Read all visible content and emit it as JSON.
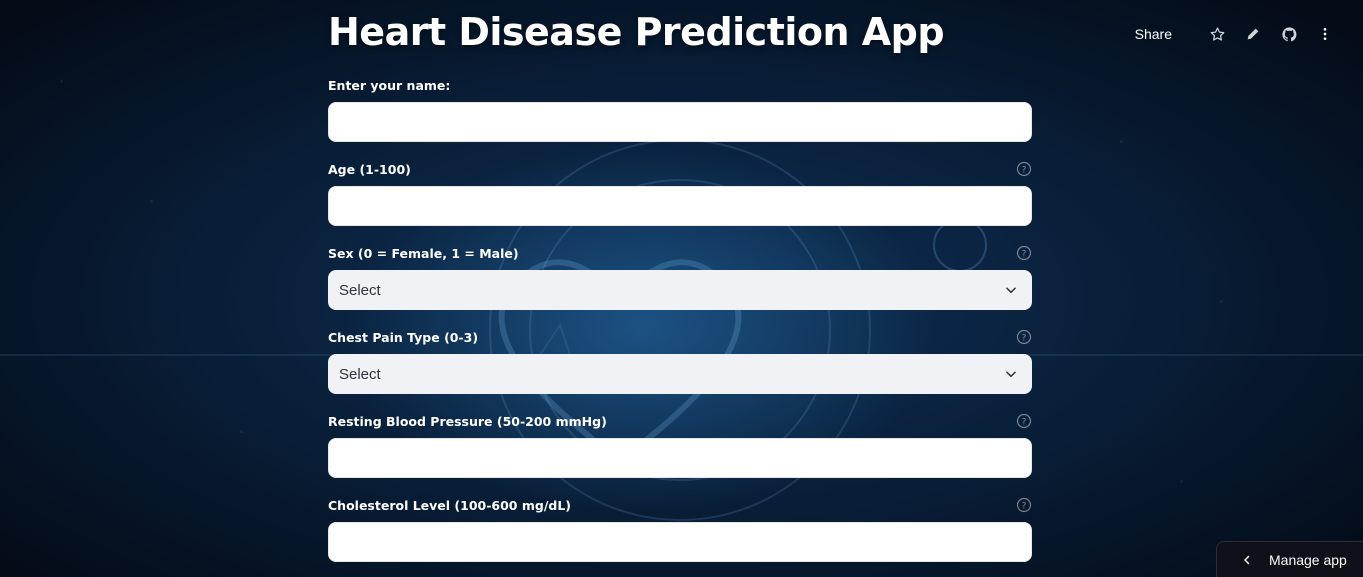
{
  "toolbar": {
    "share_label": "Share",
    "icons": [
      "star-icon",
      "pencil-icon",
      "github-icon",
      "more-vertical-icon"
    ]
  },
  "page": {
    "title": "Heart Disease Prediction App"
  },
  "form": {
    "name": {
      "label": "Enter your name:",
      "value": ""
    },
    "age": {
      "label": "Age (1-100)",
      "value": ""
    },
    "sex": {
      "label": "Sex (0 = Female, 1 = Male)",
      "selected": "Select"
    },
    "chest_pain": {
      "label": "Chest Pain Type (0-3)",
      "selected": "Select"
    },
    "resting_bp": {
      "label": "Resting Blood Pressure (50-200 mmHg)",
      "value": ""
    },
    "cholesterol": {
      "label": "Cholesterol Level (100-600 mg/dL)",
      "value": ""
    }
  },
  "manage_app": {
    "label": "Manage app"
  },
  "colors": {
    "background": "#081d36",
    "input_bg": "#ffffff",
    "select_bg": "#f0f2f6",
    "text": "#ffffff",
    "manage_bg": "#0e1117"
  }
}
